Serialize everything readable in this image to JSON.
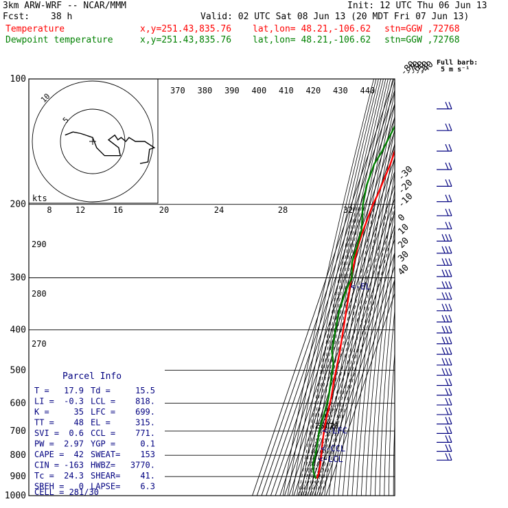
{
  "header": {
    "model": "3km ARW-WRF -- NCAR/MMM",
    "init": "Init: 12 UTC Thu 06 Jun 13",
    "fcst_label": "Fcst:",
    "fcst_value": "38 h",
    "valid": "Valid: 02 UTC Sat 08 Jun 13 (20 MDT Fri 07 Jun 13)",
    "temp_label": "Temperature",
    "dew_label": "Dewpoint temperature",
    "xy": "x,y=251.43,835.76",
    "latlon": "lat,lon= 48.21,-106.62",
    "stn": "stn=GGW ,72768",
    "full_barb": "Full barb:",
    "full_barb_unit": "5 m s⁻¹"
  },
  "colors": {
    "temperature": "#ff0000",
    "dewpoint": "#008000",
    "info": "#000080",
    "wind": "#000080",
    "grid": "#000000"
  },
  "chart_data": {
    "type": "line",
    "title": "",
    "pressure_levels": [
      100,
      200,
      300,
      400,
      500,
      600,
      700,
      800,
      900,
      1000
    ],
    "top_isotherm_labels": [
      -80,
      -70,
      -60,
      -50,
      -40
    ],
    "right_isotherm_labels": [
      -30,
      -20,
      -10,
      0,
      10,
      20,
      30,
      40
    ],
    "theta_labels": [
      370,
      380,
      390,
      400,
      410,
      420,
      430,
      440
    ],
    "adiabat_labels": [
      290,
      280,
      270
    ],
    "mixing_ratio_labels": [
      2,
      3,
      5,
      8,
      12,
      20
    ],
    "hodograph": {
      "ring_labels": [
        "5",
        "10"
      ],
      "unit": "kts",
      "speed_labels": [
        "8",
        "12",
        "16",
        "20",
        "24",
        "28",
        "32"
      ],
      "u": [
        -3.5,
        -2.5,
        -1.5,
        0,
        0.5,
        1.5,
        2.5,
        3.5,
        3.3,
        2.0,
        2.8,
        3.2,
        3.6,
        4.2,
        4.6,
        5.4,
        6.6,
        7.8,
        7.2,
        7.0,
        6.0
      ],
      "v": [
        0.8,
        1.2,
        1.0,
        0.5,
        -0.8,
        -1.8,
        -1.8,
        -1.8,
        -0.8,
        0.2,
        0.8,
        0.2,
        0.5,
        0.0,
        0.5,
        0.0,
        0.0,
        -0.8,
        -1.0,
        -2.6,
        -2.8
      ]
    },
    "series": [
      {
        "name": "Temperature",
        "p": [
          100,
          130,
          160,
          190,
          200,
          230,
          250,
          275,
          300,
          340,
          400,
          450,
          480,
          530,
          580,
          620,
          650,
          700,
          760,
          800,
          840,
          880,
          910
        ],
        "t": [
          -52,
          -55,
          -55,
          -60,
          -63,
          -65,
          -65,
          -61,
          -56,
          -46.5,
          -35,
          -26.5,
          -23,
          -17.5,
          -11,
          -8,
          -6.5,
          -2,
          5,
          10,
          14.5,
          17.5,
          17.9
        ]
      },
      {
        "name": "Dewpoint temperature",
        "p": [
          100,
          120,
          150,
          160,
          180,
          200,
          230,
          250,
          275,
          300,
          320,
          340,
          360,
          400,
          450,
          480,
          530,
          580,
          620,
          700,
          760,
          800,
          840,
          880,
          910
        ],
        "t": [
          -56,
          -68,
          -83,
          -90,
          -91,
          -85,
          -69,
          -67,
          -66,
          -55,
          -58,
          -58,
          -58,
          -52,
          -44,
          -32,
          -24,
          -17,
          -15,
          -12.5,
          -6,
          -3,
          -2,
          6,
          15.5
        ]
      }
    ],
    "wind_barbs": [
      {
        "p": 118,
        "barb": 2
      },
      {
        "p": 133,
        "barb": 2
      },
      {
        "p": 149,
        "barb": 2
      },
      {
        "p": 165,
        "barb": 2
      },
      {
        "p": 181,
        "barb": 2
      },
      {
        "p": 197,
        "barb": 2
      },
      {
        "p": 213,
        "barb": 2
      },
      {
        "p": 229,
        "barb": 2
      },
      {
        "p": 245,
        "barb": 3
      },
      {
        "p": 262,
        "barb": 3
      },
      {
        "p": 280,
        "barb": 3
      },
      {
        "p": 298,
        "barb": 3
      },
      {
        "p": 318,
        "barb": 3
      },
      {
        "p": 338,
        "barb": 3
      },
      {
        "p": 360,
        "barb": 3
      },
      {
        "p": 383,
        "barb": 3
      },
      {
        "p": 407,
        "barb": 3
      },
      {
        "p": 432,
        "barb": 3
      },
      {
        "p": 458,
        "barb": 3
      },
      {
        "p": 486,
        "barb": 3
      },
      {
        "p": 514,
        "barb": 3
      },
      {
        "p": 544,
        "barb": 2
      },
      {
        "p": 574,
        "barb": 2
      },
      {
        "p": 606,
        "barb": 2
      },
      {
        "p": 639,
        "barb": 2
      },
      {
        "p": 673,
        "barb": 2
      },
      {
        "p": 709,
        "barb": 2
      },
      {
        "p": 745,
        "barb": 2
      },
      {
        "p": 783,
        "barb": 2
      },
      {
        "p": 822,
        "barb": 2
      }
    ],
    "parcel_levels": [
      {
        "label": "EL",
        "p": 315,
        "t": -51
      },
      {
        "label": "LFC",
        "p": 699,
        "t": -5.5
      },
      {
        "label": "CCL",
        "p": 771,
        "t": 3.5
      },
      {
        "label": "LCL",
        "p": 818,
        "t": 6.5
      }
    ]
  },
  "parcel_info": {
    "title": "Parcel Info",
    "rows": [
      [
        "T  =",
        "17.9",
        "Td =",
        "15.5"
      ],
      [
        "LI =",
        "-0.3",
        "LCL =",
        "818."
      ],
      [
        "K  =",
        "35",
        "LFC =",
        "699."
      ],
      [
        "TT =",
        "48",
        "EL =",
        "315."
      ],
      [
        "SVI =",
        "0.6",
        "CCL =",
        "771."
      ],
      [
        "PW =",
        "2.97",
        "YGP =",
        "0.1"
      ],
      [
        "CAPE =",
        "42",
        "SWEAT=",
        "153"
      ],
      [
        "CIN =",
        "-163",
        "HWBZ=",
        "3770."
      ],
      [
        "Tc =",
        "24.3",
        "SHEAR=",
        "41."
      ],
      [
        "SREH =",
        "0",
        "LAPSE=",
        "6.3"
      ]
    ],
    "cell": "CELL = 281/30"
  }
}
